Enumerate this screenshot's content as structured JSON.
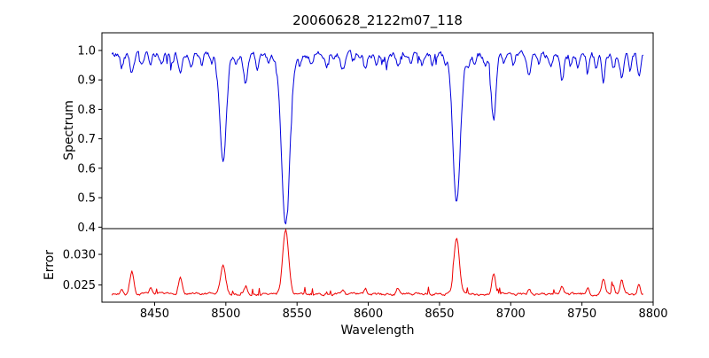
{
  "title": "20060628_2122m07_118",
  "chart_data": {
    "type": "line",
    "title": "20060628_2122m07_118",
    "xlabel": "Wavelength",
    "x_axis_range": [
      8413,
      8800
    ],
    "x_data_range": [
      8420,
      8793
    ],
    "x_ticks": [
      8450,
      8500,
      8550,
      8600,
      8650,
      8700,
      8750,
      8800
    ],
    "x_tick_labels": [
      "8450",
      "8500",
      "8550",
      "8600",
      "8650",
      "8700",
      "8750",
      "8800"
    ],
    "grid": false,
    "legend": "none",
    "panels": [
      {
        "name": "spectrum",
        "ylabel": "Spectrum",
        "color": "#0000dd",
        "ylim": [
          0.395,
          1.06
        ],
        "y_ticks": [
          0.4,
          0.5,
          0.6,
          0.7,
          0.8,
          0.9,
          1.0
        ],
        "y_tick_labels": [
          "0.4",
          "0.5",
          "0.6",
          "0.7",
          "0.8",
          "0.9",
          "1.0"
        ],
        "continuum": 0.985,
        "noise_amplitude": 0.02,
        "absorption_lines": [
          [
            8427,
            0.03,
            1.0
          ],
          [
            8434,
            0.06,
            1.2
          ],
          [
            8441,
            0.04,
            1.0
          ],
          [
            8447,
            0.04,
            1.0
          ],
          [
            8455,
            0.03,
            1.0
          ],
          [
            8462,
            0.03,
            1.0
          ],
          [
            8468,
            0.06,
            1.2
          ],
          [
            8476,
            0.04,
            1.0
          ],
          [
            8483,
            0.03,
            1.0
          ],
          [
            8490,
            0.03,
            1.0
          ],
          [
            8498,
            0.36,
            2.3
          ],
          [
            8507,
            0.04,
            1.0
          ],
          [
            8514,
            0.1,
            1.4
          ],
          [
            8522,
            0.05,
            1.0
          ],
          [
            8530,
            0.03,
            1.0
          ],
          [
            8542,
            0.58,
            2.9
          ],
          [
            8552,
            0.04,
            1.0
          ],
          [
            8560,
            0.03,
            1.0
          ],
          [
            8571,
            0.03,
            1.0
          ],
          [
            8582,
            0.05,
            1.2
          ],
          [
            8590,
            0.03,
            1.0
          ],
          [
            8598,
            0.05,
            1.2
          ],
          [
            8606,
            0.03,
            1.0
          ],
          [
            8613,
            0.03,
            1.0
          ],
          [
            8621,
            0.05,
            1.2
          ],
          [
            8630,
            0.03,
            1.0
          ],
          [
            8638,
            0.03,
            1.0
          ],
          [
            8645,
            0.04,
            1.0
          ],
          [
            8654,
            0.03,
            1.0
          ],
          [
            8662,
            0.5,
            2.6
          ],
          [
            8670,
            0.03,
            1.0
          ],
          [
            8675,
            0.04,
            1.0
          ],
          [
            8682,
            0.03,
            1.0
          ],
          [
            8688,
            0.22,
            1.6
          ],
          [
            8695,
            0.03,
            1.0
          ],
          [
            8702,
            0.04,
            1.0
          ],
          [
            8713,
            0.06,
            1.2
          ],
          [
            8720,
            0.03,
            1.0
          ],
          [
            8728,
            0.04,
            1.0
          ],
          [
            8736,
            0.09,
            1.3
          ],
          [
            8742,
            0.04,
            1.0
          ],
          [
            8747,
            0.04,
            1.0
          ],
          [
            8754,
            0.05,
            1.0
          ],
          [
            8760,
            0.04,
            1.0
          ],
          [
            8765,
            0.09,
            1.2
          ],
          [
            8772,
            0.06,
            1.0
          ],
          [
            8778,
            0.08,
            1.2
          ],
          [
            8784,
            0.05,
            1.0
          ],
          [
            8790,
            0.07,
            1.0
          ]
        ],
        "deep_line_minima": {
          "8498": 0.63,
          "8542": 0.41,
          "8662": 0.49,
          "8688": 0.77
        }
      },
      {
        "name": "error",
        "ylabel": "Error",
        "color": "#ee0000",
        "ylim": [
          0.0222,
          0.0342
        ],
        "y_ticks": [
          0.025,
          0.03
        ],
        "y_tick_labels": [
          "0.025",
          "0.030"
        ],
        "baseline": 0.0235,
        "noise_amplitude": 0.0004,
        "error_peaks": [
          [
            8427,
            0.001,
            1.0
          ],
          [
            8434,
            0.0038,
            1.3
          ],
          [
            8447,
            0.001,
            1.0
          ],
          [
            8468,
            0.0028,
            1.3
          ],
          [
            8498,
            0.0046,
            1.8
          ],
          [
            8514,
            0.0013,
            1.2
          ],
          [
            8542,
            0.0105,
            2.1
          ],
          [
            8582,
            0.0008,
            1.0
          ],
          [
            8598,
            0.0008,
            1.0
          ],
          [
            8621,
            0.0008,
            1.0
          ],
          [
            8662,
            0.0094,
            1.9
          ],
          [
            8688,
            0.0034,
            1.3
          ],
          [
            8713,
            0.001,
            1.0
          ],
          [
            8736,
            0.0013,
            1.2
          ],
          [
            8754,
            0.001,
            1.0
          ],
          [
            8765,
            0.0026,
            1.2
          ],
          [
            8772,
            0.0014,
            1.0
          ],
          [
            8778,
            0.0022,
            1.2
          ],
          [
            8790,
            0.0018,
            1.0
          ]
        ],
        "peak_maxima": {
          "8542": 0.034,
          "8662": 0.033,
          "8498": 0.028
        }
      }
    ]
  }
}
